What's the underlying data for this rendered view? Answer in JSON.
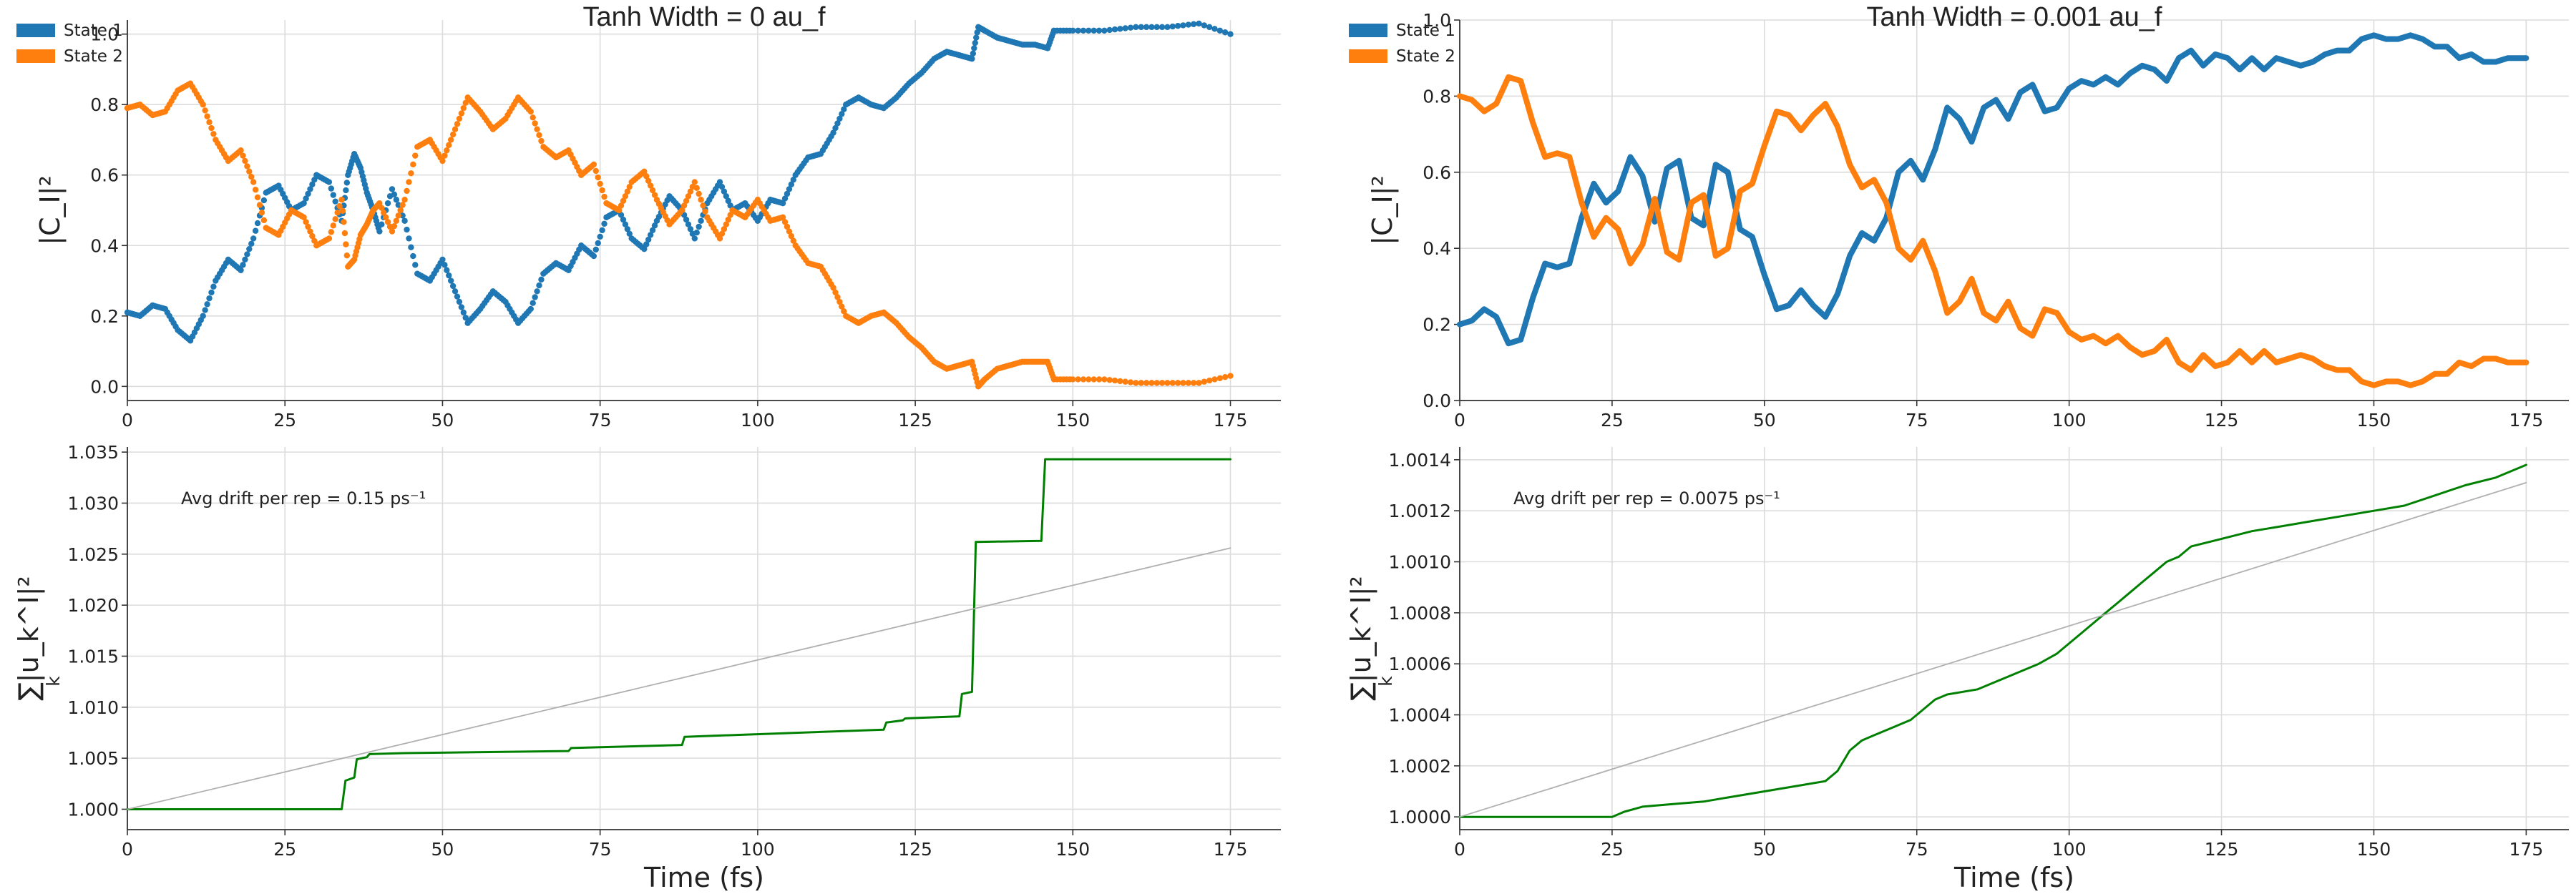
{
  "colors": {
    "state1": "#1f77b4",
    "state2": "#ff7f0e",
    "norm": "#008000",
    "drift": "#b0b0b0"
  },
  "chart_data": [
    {
      "type": "scatter",
      "panel": "top-left",
      "title": "Tanh Width = 0 au_f",
      "xlabel": "",
      "ylabel": "|C_I|²",
      "xlim": [
        0,
        183
      ],
      "ylim": [
        -0.04,
        1.04
      ],
      "xticks": [
        0,
        25,
        50,
        75,
        100,
        125,
        150,
        175
      ],
      "yticks": [
        0.0,
        0.2,
        0.4,
        0.6,
        0.8,
        1.0
      ],
      "grid": true,
      "legend": {
        "placement": "top-left",
        "entries": [
          "State 1",
          "State 2"
        ]
      },
      "series": [
        {
          "name": "State 1",
          "color_key": "state1",
          "x": [
            0,
            2,
            4,
            6,
            8,
            10,
            12,
            14,
            16,
            18,
            20,
            22,
            24,
            26,
            28,
            30,
            32,
            34,
            35,
            36,
            37,
            38,
            39,
            40,
            42,
            44,
            46,
            48,
            50,
            52,
            54,
            56,
            58,
            60,
            62,
            64,
            66,
            68,
            70,
            72,
            74,
            76,
            78,
            80,
            82,
            84,
            86,
            88,
            90,
            92,
            94,
            96,
            98,
            100,
            102,
            104,
            106,
            108,
            110,
            112,
            114,
            116,
            118,
            120,
            122,
            124,
            126,
            128,
            130,
            132,
            134,
            135,
            136,
            138,
            140,
            142,
            144,
            146,
            147,
            150,
            155,
            160,
            165,
            170,
            175
          ],
          "y": [
            0.21,
            0.2,
            0.23,
            0.22,
            0.16,
            0.13,
            0.2,
            0.3,
            0.36,
            0.33,
            0.42,
            0.55,
            0.57,
            0.5,
            0.52,
            0.6,
            0.58,
            0.47,
            0.6,
            0.66,
            0.62,
            0.55,
            0.5,
            0.44,
            0.56,
            0.47,
            0.32,
            0.3,
            0.36,
            0.27,
            0.18,
            0.22,
            0.27,
            0.24,
            0.18,
            0.22,
            0.32,
            0.35,
            0.33,
            0.4,
            0.37,
            0.48,
            0.5,
            0.42,
            0.39,
            0.47,
            0.54,
            0.5,
            0.42,
            0.52,
            0.58,
            0.5,
            0.52,
            0.47,
            0.53,
            0.52,
            0.6,
            0.65,
            0.66,
            0.72,
            0.8,
            0.82,
            0.8,
            0.79,
            0.82,
            0.86,
            0.89,
            0.93,
            0.95,
            0.94,
            0.93,
            1.02,
            1.01,
            0.99,
            0.98,
            0.97,
            0.97,
            0.96,
            1.01,
            1.01,
            1.01,
            1.02,
            1.02,
            1.03,
            1.0
          ]
        },
        {
          "name": "State 2",
          "color_key": "state2",
          "x": [
            0,
            2,
            4,
            6,
            8,
            10,
            12,
            14,
            16,
            18,
            20,
            22,
            24,
            26,
            28,
            30,
            32,
            34,
            35,
            36,
            37,
            38,
            39,
            40,
            42,
            44,
            46,
            48,
            50,
            52,
            54,
            56,
            58,
            60,
            62,
            64,
            66,
            68,
            70,
            72,
            74,
            76,
            78,
            80,
            82,
            84,
            86,
            88,
            90,
            92,
            94,
            96,
            98,
            100,
            102,
            104,
            106,
            108,
            110,
            112,
            114,
            116,
            118,
            120,
            122,
            124,
            126,
            128,
            130,
            132,
            134,
            135,
            136,
            138,
            140,
            142,
            144,
            146,
            147,
            150,
            155,
            160,
            165,
            170,
            175
          ],
          "y": [
            0.79,
            0.8,
            0.77,
            0.78,
            0.84,
            0.86,
            0.8,
            0.7,
            0.64,
            0.67,
            0.58,
            0.45,
            0.43,
            0.5,
            0.48,
            0.4,
            0.42,
            0.53,
            0.34,
            0.36,
            0.43,
            0.46,
            0.5,
            0.52,
            0.44,
            0.53,
            0.68,
            0.7,
            0.64,
            0.73,
            0.82,
            0.78,
            0.73,
            0.76,
            0.82,
            0.78,
            0.68,
            0.65,
            0.67,
            0.6,
            0.63,
            0.52,
            0.5,
            0.58,
            0.61,
            0.53,
            0.46,
            0.5,
            0.58,
            0.48,
            0.42,
            0.5,
            0.48,
            0.53,
            0.47,
            0.48,
            0.4,
            0.35,
            0.34,
            0.28,
            0.2,
            0.18,
            0.2,
            0.21,
            0.18,
            0.14,
            0.11,
            0.07,
            0.05,
            0.06,
            0.07,
            0.0,
            0.02,
            0.05,
            0.06,
            0.07,
            0.07,
            0.07,
            0.02,
            0.02,
            0.02,
            0.01,
            0.01,
            0.01,
            0.03
          ]
        }
      ]
    },
    {
      "type": "line",
      "panel": "bottom-left",
      "xlabel": "Time (fs)",
      "ylabel": "∑|u_k^I|²",
      "ylabel_sub": "k",
      "xlim": [
        0,
        183
      ],
      "ylim": [
        0.998,
        1.0355
      ],
      "xticks": [
        0,
        25,
        50,
        75,
        100,
        125,
        150,
        175
      ],
      "yticks": [
        1.0,
        1.005,
        1.01,
        1.015,
        1.02,
        1.025,
        1.03,
        1.035
      ],
      "ytick_format": 3,
      "grid": true,
      "annotation": "Avg drift per rep = 0.15 ps⁻¹",
      "series": [
        {
          "color_key": "norm",
          "step": true,
          "x": [
            0,
            34,
            34.6,
            36,
            36.4,
            38,
            38.4,
            44,
            70,
            70.4,
            88,
            88.4,
            120,
            120.4,
            123,
            123.4,
            132,
            132.4,
            134,
            134.6,
            145,
            145.6,
            175
          ],
          "y": [
            1.0,
            1.0,
            1.0028,
            1.0031,
            1.0049,
            1.0051,
            1.0054,
            1.0055,
            1.0057,
            1.006,
            1.0063,
            1.0071,
            1.0078,
            1.0085,
            1.0087,
            1.0089,
            1.0091,
            1.0113,
            1.0115,
            1.0262,
            1.0263,
            1.0343,
            1.0343
          ]
        },
        {
          "color_key": "drift",
          "x": [
            0,
            175
          ],
          "y": [
            1.0,
            1.0256
          ]
        }
      ]
    },
    {
      "type": "line",
      "panel": "top-right",
      "title": "Tanh Width = 0.001 au_f",
      "xlabel": "",
      "ylabel": "|C_I|²",
      "xlim": [
        0,
        182
      ],
      "ylim": [
        0.0,
        1.0
      ],
      "xticks": [
        0,
        25,
        50,
        75,
        100,
        125,
        150,
        175
      ],
      "yticks": [
        0.0,
        0.2,
        0.4,
        0.6,
        0.8,
        1.0
      ],
      "grid": true,
      "legend": {
        "placement": "top-left",
        "entries": [
          "State 1",
          "State 2"
        ]
      },
      "series": [
        {
          "name": "State 1",
          "color_key": "state1",
          "x": [
            0,
            2,
            4,
            6,
            8,
            10,
            12,
            14,
            16,
            18,
            20,
            22,
            24,
            26,
            28,
            30,
            32,
            34,
            36,
            38,
            40,
            42,
            44,
            46,
            48,
            50,
            52,
            54,
            56,
            58,
            60,
            62,
            64,
            66,
            68,
            70,
            72,
            74,
            76,
            78,
            80,
            82,
            84,
            86,
            88,
            90,
            92,
            94,
            96,
            98,
            100,
            102,
            104,
            106,
            108,
            110,
            112,
            114,
            116,
            118,
            120,
            122,
            124,
            126,
            128,
            130,
            132,
            134,
            136,
            138,
            140,
            142,
            144,
            146,
            148,
            150,
            152,
            154,
            156,
            158,
            160,
            162,
            164,
            166,
            168,
            170,
            172,
            175
          ],
          "y": [
            0.2,
            0.21,
            0.24,
            0.22,
            0.15,
            0.16,
            0.27,
            0.36,
            0.35,
            0.36,
            0.48,
            0.57,
            0.52,
            0.55,
            0.64,
            0.59,
            0.47,
            0.61,
            0.63,
            0.48,
            0.46,
            0.62,
            0.6,
            0.45,
            0.43,
            0.33,
            0.24,
            0.25,
            0.29,
            0.25,
            0.22,
            0.28,
            0.38,
            0.44,
            0.42,
            0.48,
            0.6,
            0.63,
            0.58,
            0.66,
            0.77,
            0.74,
            0.68,
            0.77,
            0.79,
            0.74,
            0.81,
            0.83,
            0.76,
            0.77,
            0.82,
            0.84,
            0.83,
            0.85,
            0.83,
            0.86,
            0.88,
            0.87,
            0.84,
            0.9,
            0.92,
            0.88,
            0.91,
            0.9,
            0.87,
            0.9,
            0.87,
            0.9,
            0.89,
            0.88,
            0.89,
            0.91,
            0.92,
            0.92,
            0.95,
            0.96,
            0.95,
            0.95,
            0.96,
            0.95,
            0.93,
            0.93,
            0.9,
            0.91,
            0.89,
            0.89,
            0.9,
            0.9
          ]
        },
        {
          "name": "State 2",
          "color_key": "state2",
          "x": [
            0,
            2,
            4,
            6,
            8,
            10,
            12,
            14,
            16,
            18,
            20,
            22,
            24,
            26,
            28,
            30,
            32,
            34,
            36,
            38,
            40,
            42,
            44,
            46,
            48,
            50,
            52,
            54,
            56,
            58,
            60,
            62,
            64,
            66,
            68,
            70,
            72,
            74,
            76,
            78,
            80,
            82,
            84,
            86,
            88,
            90,
            92,
            94,
            96,
            98,
            100,
            102,
            104,
            106,
            108,
            110,
            112,
            114,
            116,
            118,
            120,
            122,
            124,
            126,
            128,
            130,
            132,
            134,
            136,
            138,
            140,
            142,
            144,
            146,
            148,
            150,
            152,
            154,
            156,
            158,
            160,
            162,
            164,
            166,
            168,
            170,
            172,
            175
          ],
          "y": [
            0.8,
            0.79,
            0.76,
            0.78,
            0.85,
            0.84,
            0.73,
            0.64,
            0.65,
            0.64,
            0.52,
            0.43,
            0.48,
            0.45,
            0.36,
            0.41,
            0.53,
            0.39,
            0.37,
            0.52,
            0.54,
            0.38,
            0.4,
            0.55,
            0.57,
            0.67,
            0.76,
            0.75,
            0.71,
            0.75,
            0.78,
            0.72,
            0.62,
            0.56,
            0.58,
            0.52,
            0.4,
            0.37,
            0.42,
            0.34,
            0.23,
            0.26,
            0.32,
            0.23,
            0.21,
            0.26,
            0.19,
            0.17,
            0.24,
            0.23,
            0.18,
            0.16,
            0.17,
            0.15,
            0.17,
            0.14,
            0.12,
            0.13,
            0.16,
            0.1,
            0.08,
            0.12,
            0.09,
            0.1,
            0.13,
            0.1,
            0.13,
            0.1,
            0.11,
            0.12,
            0.11,
            0.09,
            0.08,
            0.08,
            0.05,
            0.04,
            0.05,
            0.05,
            0.04,
            0.05,
            0.07,
            0.07,
            0.1,
            0.09,
            0.11,
            0.11,
            0.1,
            0.1
          ]
        }
      ]
    },
    {
      "type": "line",
      "panel": "bottom-right",
      "xlabel": "Time (fs)",
      "ylabel": "∑|u_k^I|²",
      "ylabel_sub": "k",
      "xlim": [
        0,
        182
      ],
      "ylim": [
        0.99995,
        1.00145
      ],
      "xticks": [
        0,
        25,
        50,
        75,
        100,
        125,
        150,
        175
      ],
      "yticks": [
        1.0,
        1.0002,
        1.0004,
        1.0006,
        1.0008,
        1.001,
        1.0012,
        1.0014
      ],
      "ytick_format": 4,
      "grid": true,
      "annotation": "Avg drift per rep = 0.0075 ps⁻¹",
      "series": [
        {
          "color_key": "norm",
          "x": [
            0,
            10,
            20,
            25,
            27,
            30,
            35,
            40,
            45,
            50,
            55,
            60,
            62,
            64,
            66,
            68,
            70,
            72,
            74,
            76,
            78,
            80,
            85,
            90,
            95,
            98,
            100,
            102,
            104,
            106,
            108,
            110,
            112,
            114,
            116,
            118,
            120,
            125,
            130,
            135,
            140,
            145,
            150,
            155,
            160,
            165,
            170,
            175
          ],
          "y": [
            1.0,
            1.0,
            1.0,
            1.0,
            1.00002,
            1.00004,
            1.00005,
            1.00006,
            1.00008,
            1.0001,
            1.00012,
            1.00014,
            1.00018,
            1.00026,
            1.0003,
            1.00032,
            1.00034,
            1.00036,
            1.00038,
            1.00042,
            1.00046,
            1.00048,
            1.0005,
            1.00055,
            1.0006,
            1.00064,
            1.00068,
            1.00072,
            1.00076,
            1.0008,
            1.00084,
            1.00088,
            1.00092,
            1.00096,
            1.001,
            1.00102,
            1.00106,
            1.00109,
            1.00112,
            1.00114,
            1.00116,
            1.00118,
            1.0012,
            1.00122,
            1.00126,
            1.0013,
            1.00133,
            1.00138
          ]
        },
        {
          "color_key": "drift",
          "x": [
            0,
            175
          ],
          "y": [
            1.0,
            1.00131
          ]
        }
      ]
    }
  ]
}
